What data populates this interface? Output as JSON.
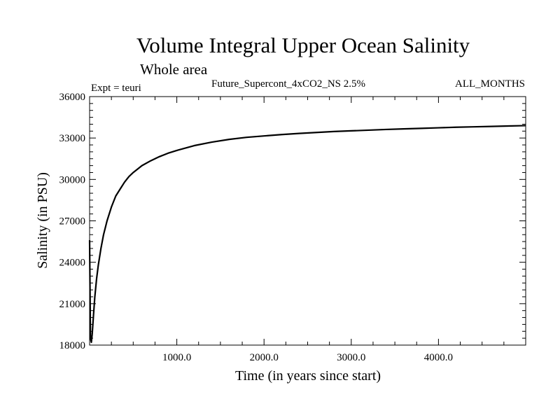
{
  "chart_data": {
    "type": "line",
    "title": "Volume Integral Upper Ocean Salinity",
    "subtitle": "Whole area",
    "expt_label": "Expt = teuri",
    "run_label": "Future_Supercont_4xCO2_NS 2.5%",
    "months_label": "ALL_MONTHS",
    "xlabel": "Time (in years since start)",
    "ylabel": "Salinity (in PSU)",
    "xlim": [
      0,
      5000
    ],
    "ylim": [
      18000,
      36000
    ],
    "x_ticks": [
      1000,
      2000,
      3000,
      4000
    ],
    "x_tick_labels": [
      "1000.0",
      "2000.0",
      "3000.0",
      "4000.0"
    ],
    "y_ticks": [
      18000,
      21000,
      24000,
      27000,
      30000,
      33000,
      36000
    ],
    "y_tick_labels": [
      "18000",
      "21000",
      "24000",
      "27000",
      "30000",
      "33000",
      "36000"
    ],
    "grid": false,
    "series": [
      {
        "color": "#000000",
        "x": [
          0,
          10,
          20,
          30,
          45,
          60,
          80,
          100,
          130,
          160,
          200,
          250,
          300,
          350,
          400,
          450,
          500,
          600,
          700,
          800,
          900,
          1000,
          1200,
          1400,
          1600,
          1800,
          2000,
          2200,
          2400,
          2600,
          2800,
          3000,
          3200,
          3400,
          3600,
          3800,
          4000,
          4200,
          4400,
          4600,
          4800,
          5000
        ],
        "y": [
          25600,
          18500,
          18200,
          18800,
          20200,
          21500,
          22800,
          23800,
          25000,
          26000,
          27000,
          28000,
          28800,
          29300,
          29800,
          30200,
          30500,
          31000,
          31350,
          31650,
          31900,
          32100,
          32450,
          32700,
          32900,
          33050,
          33150,
          33250,
          33330,
          33400,
          33470,
          33520,
          33570,
          33620,
          33660,
          33700,
          33740,
          33780,
          33810,
          33840,
          33870,
          33900
        ]
      }
    ]
  }
}
